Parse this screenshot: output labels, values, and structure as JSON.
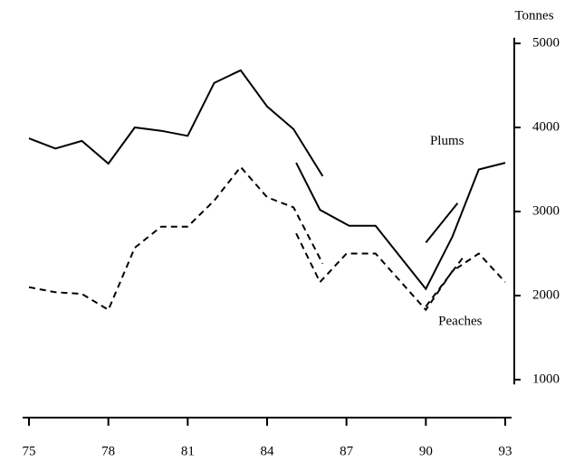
{
  "chart_data": {
    "type": "line",
    "y_label": "Tonnes",
    "annotations": [
      {
        "text": "Plums",
        "x": 90.8,
        "y": 3830
      },
      {
        "text": "Peaches",
        "x": 91.3,
        "y": 1690
      }
    ],
    "xlim": [
      75,
      93
    ],
    "xticks": [
      75,
      78,
      81,
      84,
      87,
      90,
      93
    ],
    "ylim": [
      900,
      5100
    ],
    "yticks": [
      1000,
      2000,
      3000,
      4000,
      5000
    ],
    "series": [
      {
        "name": "Plums",
        "color": "#000000",
        "style": "solid",
        "x": [
          75,
          76,
          77,
          78,
          79,
          80,
          81,
          82,
          83,
          84,
          85,
          86.1,
          null,
          85.1,
          86,
          87.1,
          88.1,
          90,
          91,
          92,
          93,
          null,
          90,
          91.2
        ],
        "values": [
          3870,
          3750,
          3840,
          3570,
          4000,
          3960,
          3900,
          4530,
          4680,
          4250,
          3980,
          3420,
          null,
          3580,
          3020,
          2830,
          2830,
          2080,
          2700,
          3500,
          3580,
          null,
          2630,
          3100
        ]
      },
      {
        "name": "Peaches",
        "color": "#000000",
        "style": "dashed",
        "x": [
          75,
          76,
          77,
          78,
          79,
          80,
          81,
          82,
          83,
          84,
          85,
          86.1,
          null,
          85.1,
          86,
          87,
          88.1,
          90,
          91,
          92,
          93,
          null,
          90,
          91.4
        ],
        "values": [
          2100,
          2040,
          2020,
          1830,
          2570,
          2820,
          2820,
          3130,
          3530,
          3170,
          3050,
          2380,
          null,
          2740,
          2160,
          2500,
          2500,
          1830,
          2290,
          2500,
          2160,
          null,
          1870,
          2450
        ]
      }
    ]
  }
}
